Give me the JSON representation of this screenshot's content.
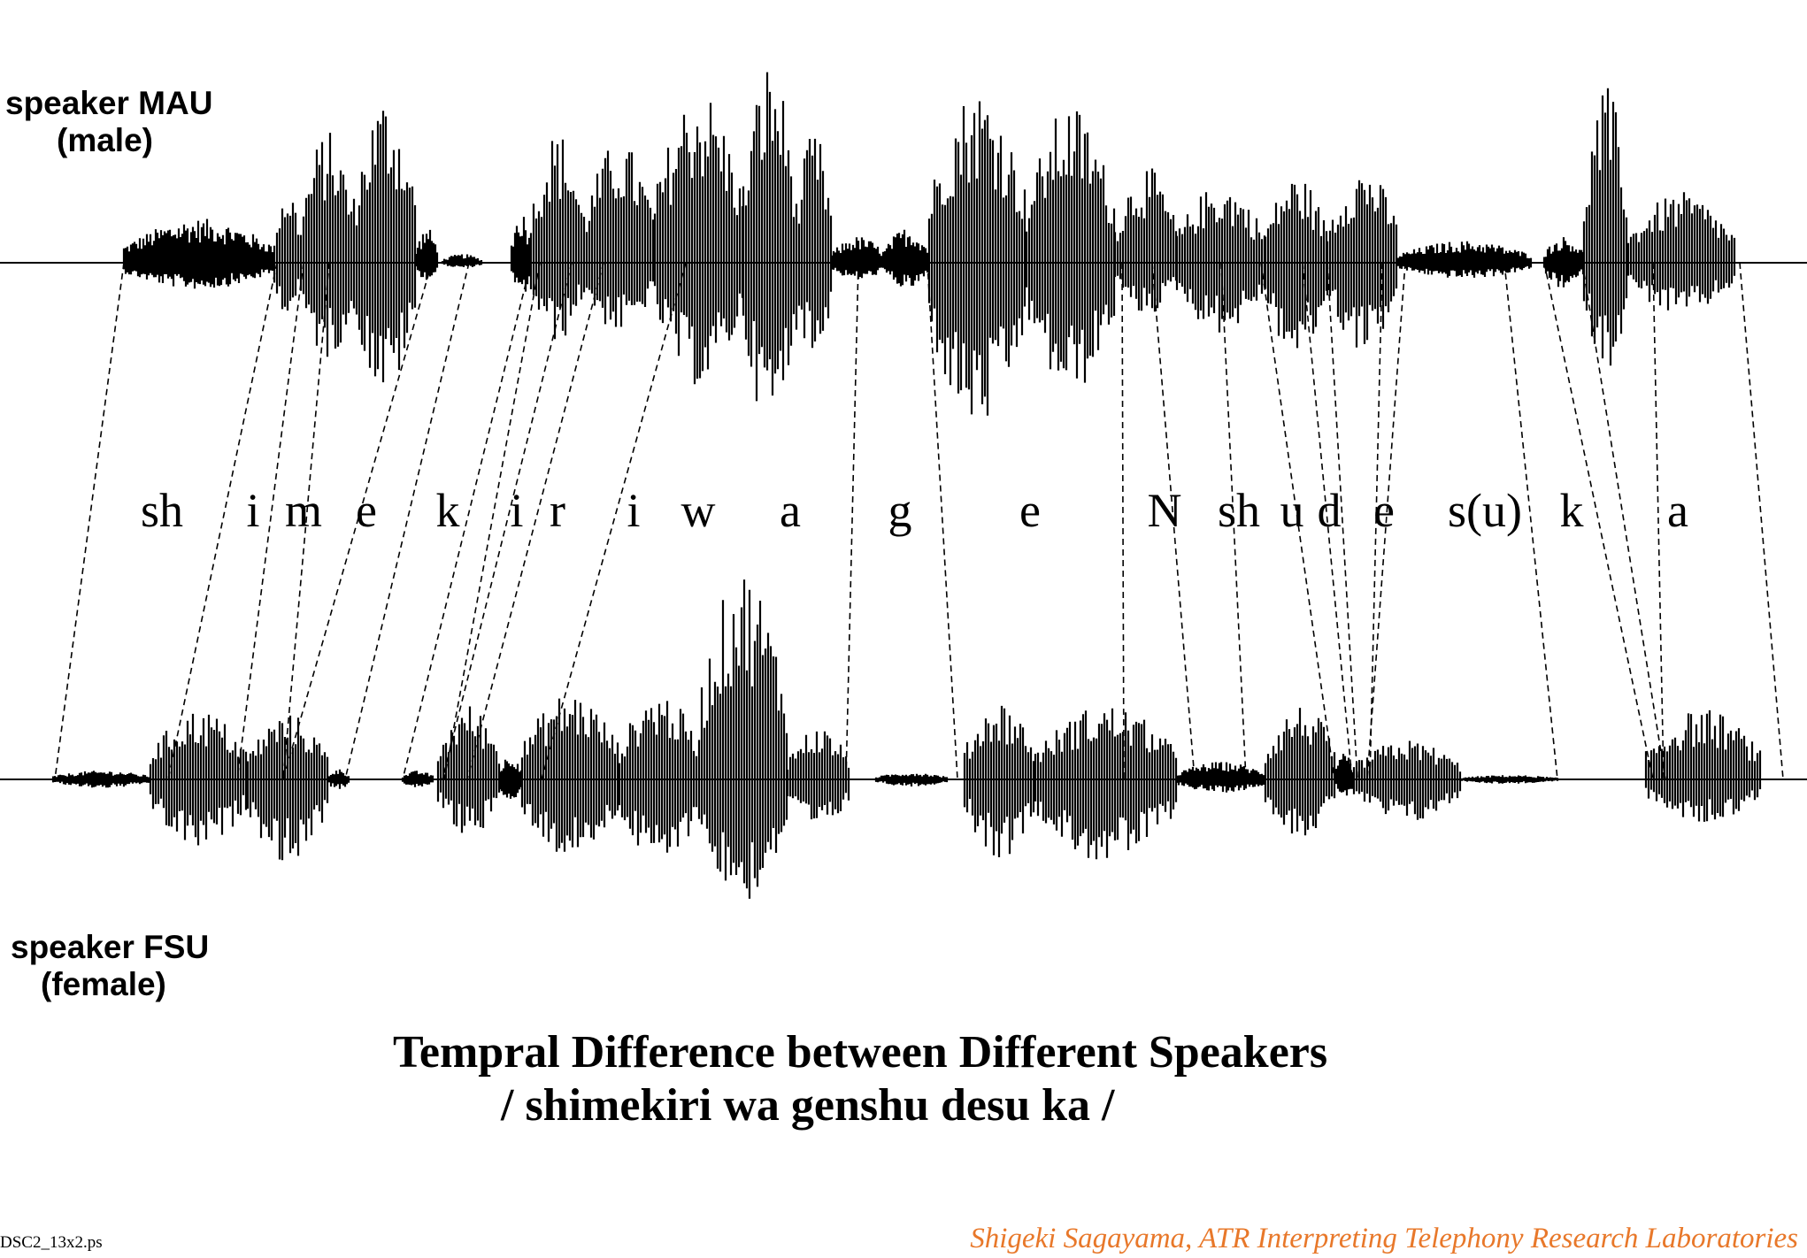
{
  "speakers": [
    {
      "id": "MAU",
      "name": "speaker MAU",
      "gender": "(male)"
    },
    {
      "id": "FSU",
      "name": "speaker FSU",
      "gender": "(female)"
    }
  ],
  "phonemes": [
    "sh",
    "i",
    "m",
    "e",
    "k",
    "i",
    "r",
    "i",
    "w",
    "a",
    "g",
    "e",
    "N",
    "sh",
    "u",
    "d",
    "e",
    "s(u)",
    "k",
    "a"
  ],
  "title": "Tempral Difference between Different Speakers",
  "subtitle": "/ shimekiri wa genshu desu ka /",
  "file_label": "DSC2_13x2.ps",
  "credit": "Shigeki Sagayama, ATR Interpreting Telephony Research Laboratories",
  "colors": {
    "ink": "#000000",
    "credit": "#e8782a"
  }
}
